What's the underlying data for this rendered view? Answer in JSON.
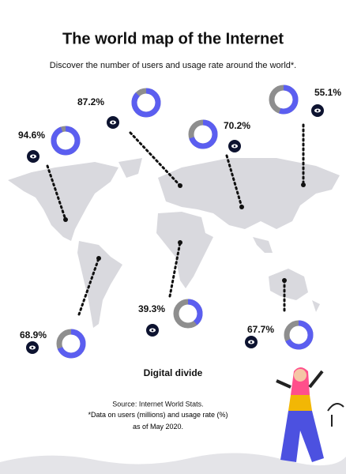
{
  "chart_data": {
    "type": "donut",
    "title": "The world map of the Internet",
    "subtitle": "Discover the number of users and usage rate around the world*.",
    "values": [
      87.2,
      55.1,
      94.6,
      70.2,
      68.9,
      39.3,
      67.7
    ],
    "value_labels": [
      "87.2%",
      "55.1%",
      "94.6%",
      "70.2%",
      "68.9%",
      "39.3%",
      "67.7%"
    ],
    "color": "#5b5ef0",
    "rest_color": "#8e8e8e",
    "caption": "Digital divide",
    "source": "Source: Internet World Stats.",
    "note": "*Data on users (millions) and usage rate (%) as of May 2020."
  }
}
